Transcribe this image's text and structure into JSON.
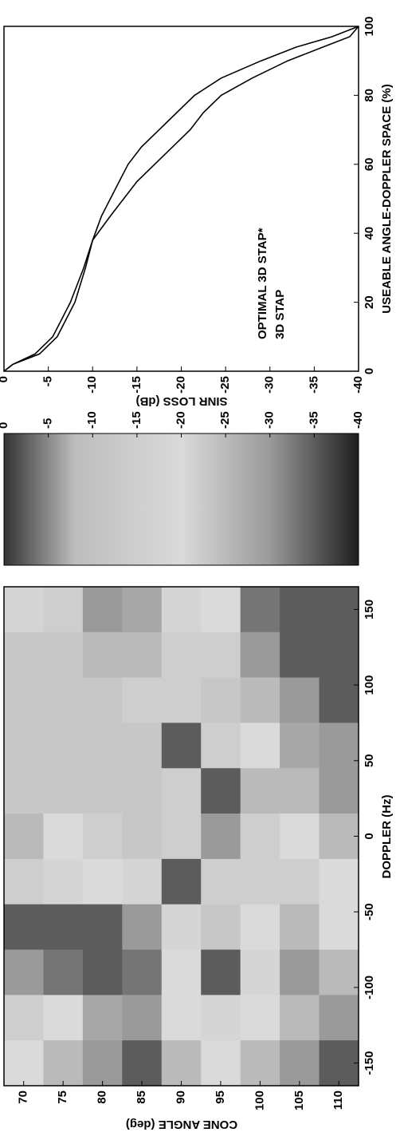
{
  "chart_data": [
    {
      "type": "heatmap",
      "x_label": "DOPPLER (Hz)",
      "y_label": "CONE ANGLE (deg)",
      "x": [
        -150,
        -120,
        -90,
        -60,
        -30,
        0,
        30,
        60,
        90,
        120,
        150
      ],
      "y": [
        70,
        75,
        80,
        85,
        90,
        95,
        100,
        105,
        110
      ],
      "z": [
        [
          -20,
          -15,
          -30,
          -35,
          -15,
          -25,
          -12,
          -12,
          -12,
          -12,
          -18
        ],
        [
          -25,
          -20,
          -33,
          -35,
          -18,
          -20,
          -12,
          -12,
          -12,
          -12,
          -15
        ],
        [
          -30,
          -28,
          -35,
          -35,
          -20,
          -15,
          -12,
          -12,
          -12,
          -25,
          -30
        ],
        [
          -35,
          -30,
          -33,
          -30,
          -18,
          -12,
          -12,
          -12,
          -15,
          -25,
          -28
        ],
        [
          -25,
          -20,
          -20,
          -18,
          -35,
          -15,
          -15,
          -35,
          -15,
          -15,
          -18
        ],
        [
          -20,
          -18,
          -35,
          -12,
          -15,
          -30,
          -35,
          -15,
          -12,
          -15,
          -20
        ],
        [
          -25,
          -20,
          -18,
          -20,
          -15,
          -15,
          -25,
          -20,
          -25,
          -30,
          -33
        ],
        [
          -30,
          -25,
          -30,
          -25,
          -15,
          -20,
          -25,
          -28,
          -30,
          -35,
          -35
        ],
        [
          -35,
          -30,
          -25,
          -20,
          -20,
          -25,
          -30,
          -30,
          -35,
          -35,
          -35
        ]
      ],
      "xlim": [
        -165,
        165
      ],
      "xticks": [
        -150,
        -100,
        -50,
        0,
        50,
        100,
        150
      ],
      "ylim": [
        112.5,
        67.5
      ],
      "yticks": [
        70,
        75,
        80,
        85,
        90,
        95,
        100,
        105,
        110
      ],
      "clim": [
        -40,
        0
      ],
      "cticks": [
        0,
        -5,
        -10,
        -15,
        -20,
        -25,
        -30,
        -35,
        -40
      ],
      "colormap": [
        {
          "value": 0,
          "color": "#333333"
        },
        {
          "value": -8,
          "color": "#bdbdbd"
        },
        {
          "value": -20,
          "color": "#dadada"
        },
        {
          "value": -30,
          "color": "#9a9a9a"
        },
        {
          "value": -40,
          "color": "#1e1e1e"
        }
      ]
    },
    {
      "type": "line",
      "x_label": "USEABLE ANGLE-DOPPLER SPACE (%)",
      "y_label": "SINR LOSS (dB)",
      "x": [
        0,
        2,
        5,
        10,
        20,
        30,
        38,
        45,
        50,
        55,
        60,
        65,
        70,
        75,
        80,
        85,
        90,
        94,
        97,
        100
      ],
      "series": [
        {
          "name": "OPTIMAL 3D STAP*",
          "color": "#000000",
          "values": [
            0,
            -1,
            -3.5,
            -5.5,
            -7.5,
            -9,
            -10,
            -11,
            -12,
            -13,
            -14,
            -15.5,
            -17.5,
            -19.5,
            -21.5,
            -24.5,
            -29,
            -33,
            -37,
            -40
          ]
        },
        {
          "name": "3D STAP",
          "color": "#000000",
          "values": [
            0,
            -1,
            -4,
            -6,
            -8,
            -9.2,
            -10,
            -12,
            -13.5,
            -15,
            -17,
            -19,
            -21,
            -22.5,
            -24.5,
            -28,
            -32,
            -36,
            -39,
            -40
          ]
        }
      ],
      "xlim": [
        0,
        100
      ],
      "xticks": [
        0,
        20,
        40,
        60,
        80,
        100
      ],
      "ylim": [
        -40,
        0
      ],
      "yticks": [
        0,
        -5,
        -10,
        -15,
        -20,
        -25,
        -30,
        -35,
        -40
      ]
    }
  ]
}
